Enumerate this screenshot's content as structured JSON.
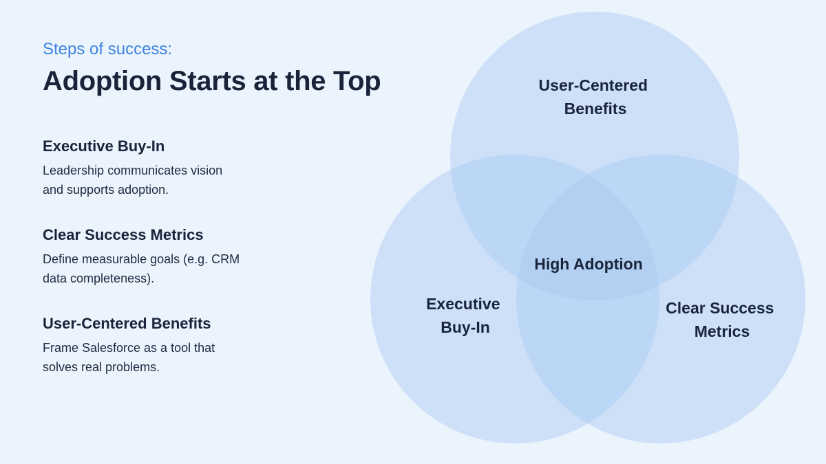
{
  "header": {
    "eyebrow": "Steps of success:",
    "title": "Adoption Starts at the Top"
  },
  "items": [
    {
      "title": "Executive Buy-In",
      "desc": "Leadership communicates vision and supports adoption."
    },
    {
      "title": "Clear Success Metrics",
      "desc": "Define measurable goals (e.g. CRM data completeness)."
    },
    {
      "title": "User-Centered Benefits",
      "desc": "Frame Salesforce as a tool that solves real problems."
    }
  ],
  "venn": {
    "circle_color": "#a9c9f2",
    "sets": [
      {
        "id": "user",
        "label_lines": [
          "User-Centered",
          "Benefits"
        ]
      },
      {
        "id": "exec",
        "label_lines": [
          "Executive",
          "Buy-In"
        ]
      },
      {
        "id": "metrics",
        "label_lines": [
          "Clear Success",
          "Metrics"
        ]
      }
    ],
    "center_label": "High Adoption"
  }
}
